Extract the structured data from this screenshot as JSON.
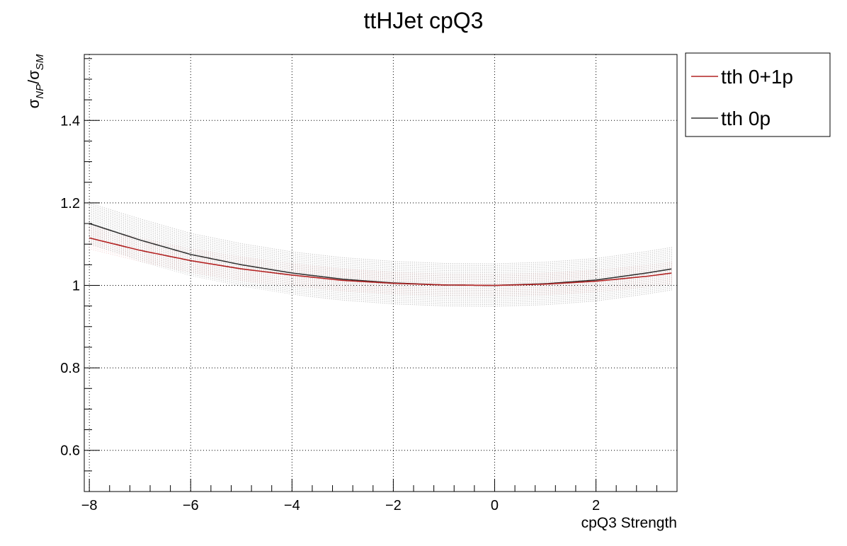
{
  "chart_data": {
    "type": "line",
    "title": "ttHJet cpQ3",
    "xlabel": "cpQ3 Strength",
    "ylabel": {
      "base": "σ",
      "num_sub": "NP",
      "den_sub": "SM"
    },
    "xlim": [
      -8.1,
      3.6
    ],
    "ylim": [
      0.5,
      1.56
    ],
    "x_ticks": [
      -8,
      -6,
      -4,
      -2,
      0,
      2
    ],
    "x_tick_labels": [
      "−8",
      "−6",
      "−4",
      "−2",
      "0",
      "2"
    ],
    "y_ticks": [
      0.6,
      0.8,
      1.0,
      1.2,
      1.4
    ],
    "y_tick_labels": [
      "0.6",
      "0.8",
      "1",
      "1.2",
      "1.4"
    ],
    "grid": true,
    "legend_position": "outside-top-right",
    "x": [
      -8.0,
      -7.0,
      -6.0,
      -5.0,
      -4.0,
      -3.0,
      -2.0,
      -1.0,
      0.0,
      1.0,
      2.0,
      3.0,
      3.5
    ],
    "series": [
      {
        "name": "tth 0+1p",
        "color": "#b22222",
        "values": [
          1.115,
          1.085,
          1.06,
          1.04,
          1.025,
          1.012,
          1.005,
          1.001,
          1.0,
          1.003,
          1.01,
          1.022,
          1.03
        ],
        "band_half_width": [
          0.03,
          0.03,
          0.029,
          0.029,
          0.028,
          0.028,
          0.027,
          0.027,
          0.027,
          0.027,
          0.027,
          0.027,
          0.027
        ]
      },
      {
        "name": "tth 0p",
        "color": "#333333",
        "values": [
          1.15,
          1.11,
          1.075,
          1.05,
          1.03,
          1.015,
          1.006,
          1.001,
          1.0,
          1.004,
          1.013,
          1.03,
          1.04
        ],
        "band_half_width": [
          0.05,
          0.052,
          0.052,
          0.052,
          0.052,
          0.053,
          0.053,
          0.053,
          0.053,
          0.053,
          0.053,
          0.053,
          0.053
        ]
      }
    ]
  }
}
